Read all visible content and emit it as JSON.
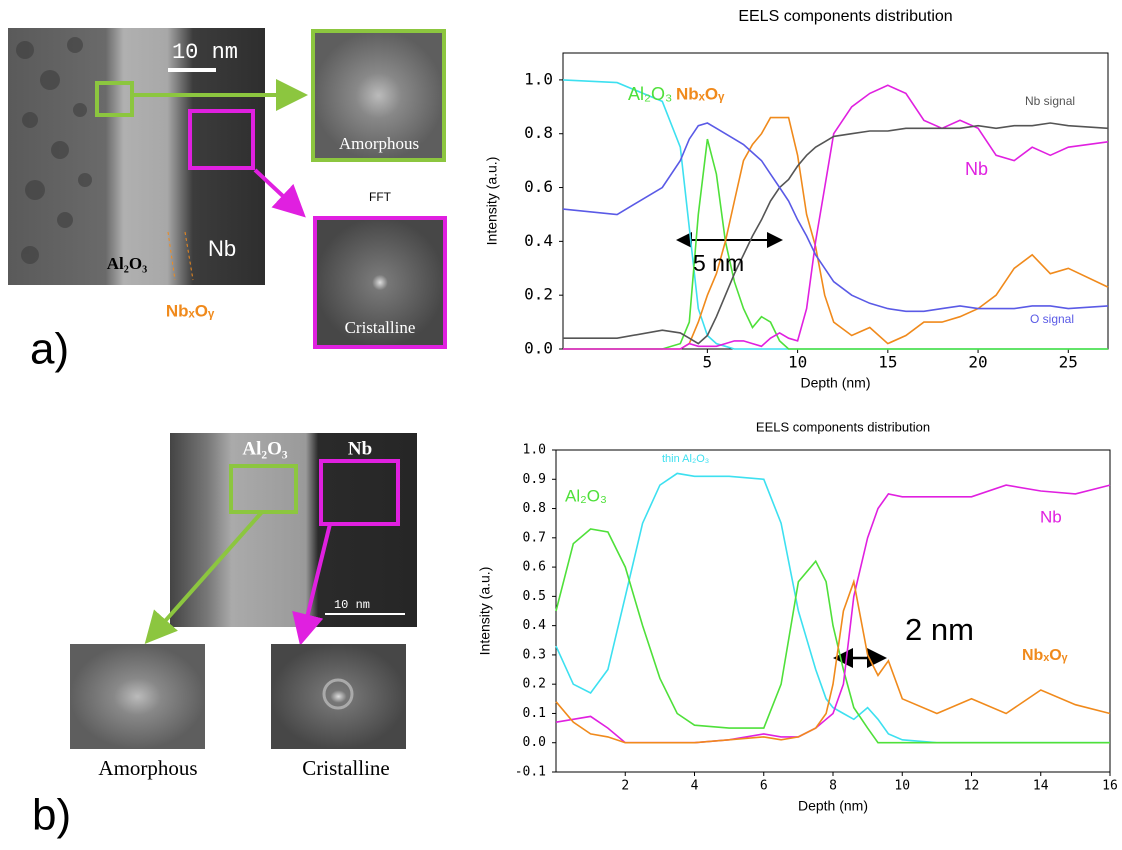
{
  "figure_a": {
    "panel_label": "a)",
    "scale": "10 nm",
    "layer_labels": [
      "Al₂O₃",
      "Nb",
      "NbₓOᵧ"
    ],
    "fft": "FFT",
    "insets": [
      "Amorphous",
      "Cristalline"
    ]
  },
  "figure_b": {
    "panel_label": "b)",
    "scale": "10 nm",
    "layer_labels": [
      "Al₂O₃",
      "Nb"
    ],
    "insets": [
      "Amorphous",
      "Cristalline"
    ]
  },
  "chart_data": [
    {
      "type": "line",
      "title": "EELS components distribution",
      "x_label": "Depth (nm)",
      "y_label": "Intensity (a.u.)",
      "x": [
        -3,
        0,
        2.5,
        3.5,
        4,
        4.5,
        5,
        5.5,
        6,
        6.5,
        7,
        7.5,
        8,
        8.5,
        9,
        9.5,
        10,
        10.5,
        11,
        11.5,
        12,
        13,
        14,
        15,
        16,
        17,
        18,
        19,
        20,
        21,
        22,
        23,
        24,
        25,
        27.2
      ],
      "xlim": [
        -3,
        27.2
      ],
      "xticks": [
        5,
        10,
        15,
        20,
        25
      ],
      "ylim": [
        0,
        1.1
      ],
      "yticks": [
        {
          "value": 0,
          "label": "0.0"
        },
        0.2,
        0.4,
        0.6,
        0.8,
        {
          "value": 1,
          "label": "1.0"
        }
      ],
      "annotations": [
        "5 nm"
      ],
      "series": [
        {
          "color": "#3de0f0",
          "values": [
            1.0,
            0.99,
            0.92,
            0.75,
            0.45,
            0.15,
            0.05,
            0.02,
            0.01,
            0,
            0,
            0,
            0,
            0,
            0,
            0,
            0,
            0,
            0,
            0,
            0,
            0,
            0,
            0,
            0,
            0,
            0,
            0,
            0,
            0,
            0,
            0,
            0,
            0,
            0
          ]
        },
        {
          "name": "Al₂O₃",
          "color": "#4fe03a",
          "values": [
            0,
            0,
            0,
            0.02,
            0.1,
            0.5,
            0.78,
            0.65,
            0.4,
            0.25,
            0.15,
            0.08,
            0.12,
            0.1,
            0.03,
            0,
            0,
            0,
            0,
            0,
            0,
            0,
            0,
            0,
            0,
            0,
            0,
            0,
            0,
            0,
            0,
            0,
            0,
            0,
            0
          ]
        },
        {
          "name": "NbₓOᵧ",
          "color": "#f08a1c",
          "values": [
            0,
            0,
            0,
            0,
            0.02,
            0.1,
            0.2,
            0.28,
            0.4,
            0.55,
            0.7,
            0.76,
            0.8,
            0.86,
            0.86,
            0.86,
            0.72,
            0.5,
            0.38,
            0.2,
            0.1,
            0.05,
            0.08,
            0.02,
            0.05,
            0.1,
            0.1,
            0.12,
            0.15,
            0.2,
            0.3,
            0.35,
            0.28,
            0.3,
            0.23
          ]
        },
        {
          "name": "Nb",
          "color": "#e020e0",
          "values": [
            0,
            0,
            0,
            0,
            0.02,
            0.01,
            0.01,
            0.01,
            0.02,
            0.03,
            0.03,
            0.02,
            0.01,
            0.04,
            0.06,
            0.04,
            0.03,
            0.15,
            0.4,
            0.6,
            0.8,
            0.9,
            0.95,
            0.98,
            0.95,
            0.85,
            0.82,
            0.85,
            0.82,
            0.72,
            0.7,
            0.75,
            0.72,
            0.75,
            0.77
          ]
        },
        {
          "name": "Nb signal",
          "color": "#555555",
          "values": [
            0.04,
            0.04,
            0.07,
            0.06,
            0.04,
            0.02,
            0.05,
            0.12,
            0.2,
            0.28,
            0.35,
            0.42,
            0.48,
            0.55,
            0.6,
            0.63,
            0.68,
            0.72,
            0.75,
            0.77,
            0.79,
            0.8,
            0.81,
            0.81,
            0.82,
            0.82,
            0.82,
            0.82,
            0.83,
            0.82,
            0.83,
            0.83,
            0.84,
            0.83,
            0.82
          ]
        },
        {
          "name": "O signal",
          "color": "#5a5ae6",
          "values": [
            0.52,
            0.5,
            0.6,
            0.7,
            0.78,
            0.83,
            0.84,
            0.82,
            0.8,
            0.78,
            0.76,
            0.73,
            0.7,
            0.65,
            0.6,
            0.55,
            0.48,
            0.42,
            0.35,
            0.3,
            0.25,
            0.2,
            0.17,
            0.15,
            0.14,
            0.14,
            0.15,
            0.16,
            0.15,
            0.15,
            0.15,
            0.16,
            0.16,
            0.15,
            0.16
          ]
        }
      ]
    },
    {
      "type": "line",
      "title": "EELS components distribution",
      "x_label": "Depth (nm)",
      "y_label": "Intensity (a.u.)",
      "x": [
        0,
        0.5,
        1,
        1.5,
        2,
        2.5,
        3,
        3.5,
        4,
        5,
        6,
        6.5,
        7,
        7.5,
        7.8,
        8,
        8.3,
        8.6,
        9,
        9.3,
        9.6,
        10,
        11,
        12,
        13,
        14,
        15,
        16
      ],
      "xlim": [
        0,
        16
      ],
      "xticks": [
        2,
        4,
        6,
        8,
        10,
        12,
        14,
        16
      ],
      "ylim": [
        -0.1,
        1.0
      ],
      "yticks": [
        -0.1,
        {
          "value": 0,
          "label": "0.0"
        },
        0.1,
        0.2,
        0.3,
        0.4,
        0.5,
        0.6,
        0.7,
        0.8,
        0.9,
        {
          "value": 1,
          "label": "1.0"
        }
      ],
      "annotations": [
        "2 nm"
      ],
      "series": [
        {
          "name": "thin Al₂O₃",
          "color": "#3de0f0",
          "values": [
            0.33,
            0.2,
            0.17,
            0.25,
            0.5,
            0.75,
            0.88,
            0.92,
            0.91,
            0.91,
            0.9,
            0.75,
            0.45,
            0.25,
            0.15,
            0.12,
            0.1,
            0.08,
            0.12,
            0.08,
            0.03,
            0.01,
            0,
            0,
            0,
            0,
            0,
            0
          ]
        },
        {
          "name": "Al₂O₃",
          "color": "#4fe03a",
          "values": [
            0.45,
            0.68,
            0.73,
            0.72,
            0.6,
            0.4,
            0.22,
            0.1,
            0.06,
            0.05,
            0.05,
            0.2,
            0.55,
            0.62,
            0.55,
            0.4,
            0.25,
            0.12,
            0.05,
            0,
            0,
            0,
            0,
            0,
            0,
            0,
            0,
            0
          ]
        },
        {
          "name": "Nb",
          "color": "#e020e0",
          "values": [
            0.07,
            0.08,
            0.09,
            0.05,
            0,
            0,
            0,
            0,
            0,
            0.01,
            0.03,
            0.02,
            0.02,
            0.05,
            0.08,
            0.1,
            0.2,
            0.5,
            0.7,
            0.8,
            0.85,
            0.84,
            0.84,
            0.84,
            0.88,
            0.86,
            0.85,
            0.88
          ]
        },
        {
          "name": "NbₓOᵧ",
          "color": "#f08a1c",
          "values": [
            0.14,
            0.07,
            0.03,
            0.02,
            0,
            0,
            0,
            0,
            0,
            0.01,
            0.02,
            0.01,
            0.02,
            0.05,
            0.1,
            0.2,
            0.45,
            0.55,
            0.3,
            0.23,
            0.28,
            0.15,
            0.1,
            0.15,
            0.1,
            0.18,
            0.13,
            0.1
          ]
        }
      ]
    }
  ]
}
